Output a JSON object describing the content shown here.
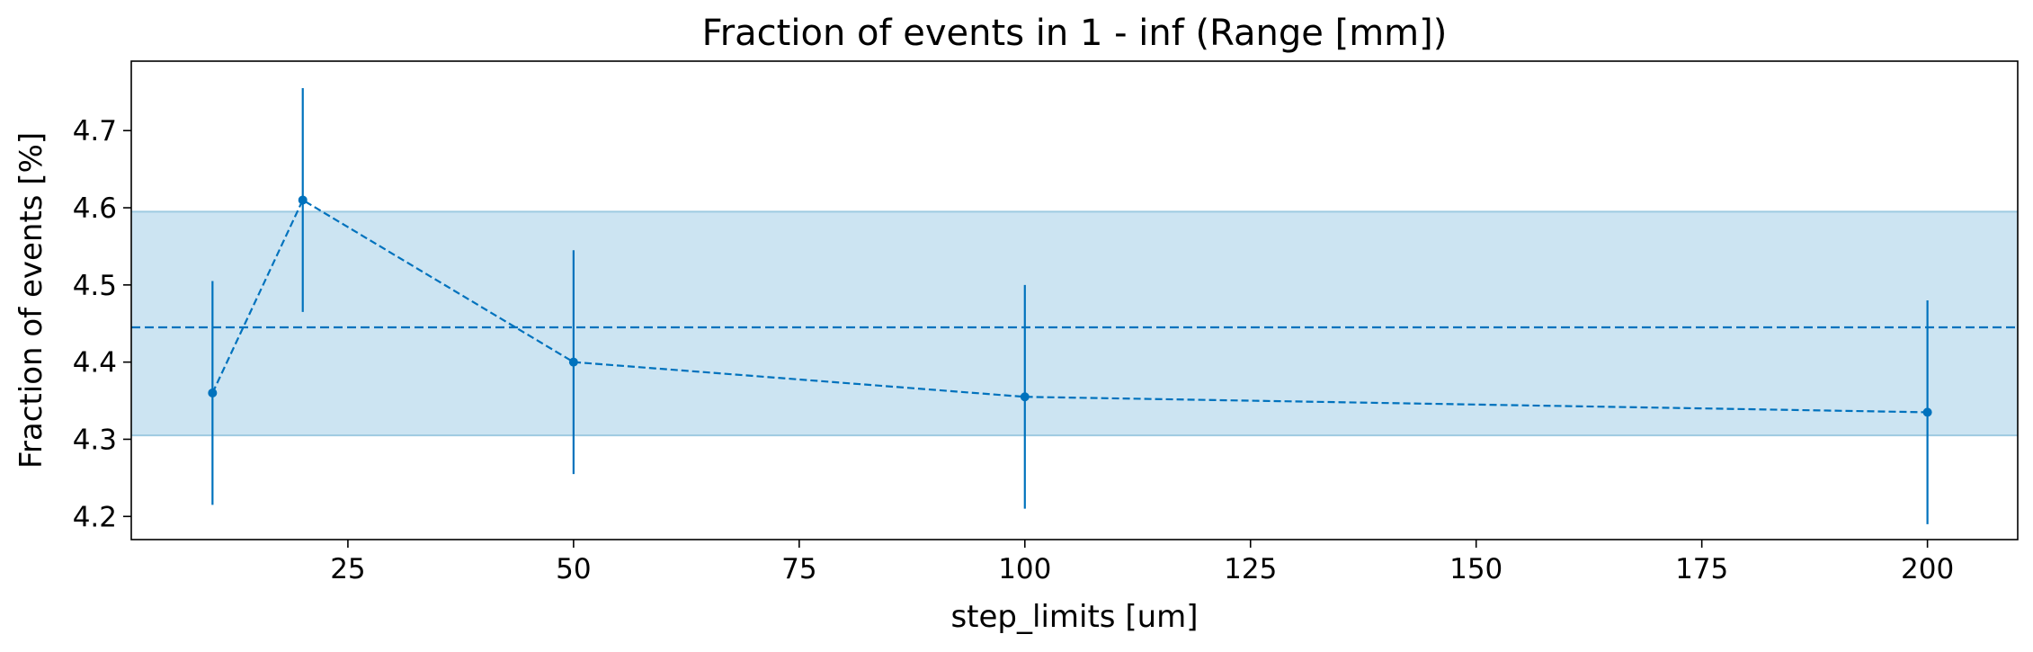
{
  "chart_data": {
    "type": "line",
    "title": "Fraction of events in 1 - inf (Range [mm])",
    "xlabel": "step_limits [um]",
    "ylabel": "Fraction of events [%]",
    "xlim": [
      1,
      210
    ],
    "ylim": [
      4.17,
      4.79
    ],
    "xticks": [
      25,
      50,
      75,
      100,
      125,
      150,
      175,
      200
    ],
    "yticks": [
      4.2,
      4.3,
      4.4,
      4.5,
      4.6,
      4.7
    ],
    "xtick_labels": [
      "25",
      "50",
      "75",
      "100",
      "125",
      "150",
      "175",
      "200"
    ],
    "ytick_labels": [
      "4.2",
      "4.3",
      "4.4",
      "4.5",
      "4.6",
      "4.7"
    ],
    "grid": false,
    "series": [
      {
        "x": [
          10,
          20,
          50,
          100,
          200
        ],
        "y": [
          4.36,
          4.61,
          4.4,
          4.355,
          4.335
        ],
        "yerr": [
          0.145,
          0.145,
          0.145,
          0.145,
          0.145
        ],
        "style": "dashed line with error bars"
      }
    ],
    "mean_line": 4.445,
    "band": [
      4.305,
      4.595
    ],
    "colors": {
      "series": "#0072bd",
      "band_fill": "#cce4f2",
      "band_edge": "#9ecae1"
    }
  }
}
